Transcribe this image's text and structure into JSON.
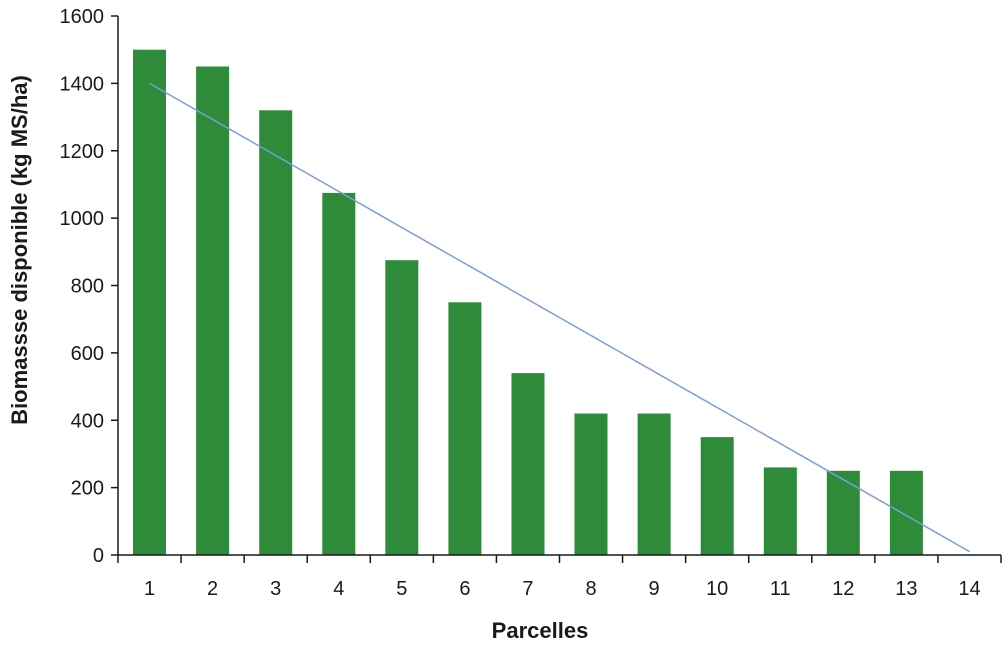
{
  "chart_data": {
    "type": "bar",
    "title": "",
    "xlabel": "Parcelles",
    "ylabel": "Biomassse disponible (kg MS/ha)",
    "categories": [
      "1",
      "2",
      "3",
      "4",
      "5",
      "6",
      "7",
      "8",
      "9",
      "10",
      "11",
      "12",
      "13",
      "14"
    ],
    "values": [
      1500,
      1450,
      1320,
      1075,
      875,
      750,
      540,
      420,
      420,
      350,
      260,
      250,
      250,
      null
    ],
    "ylim": [
      0,
      1600
    ],
    "yticks": [
      0,
      200,
      400,
      600,
      800,
      1000,
      1200,
      1400,
      1600
    ],
    "trendline": {
      "type": "linear",
      "x": [
        1,
        14
      ],
      "y": [
        1400,
        10
      ]
    },
    "grid": false,
    "legend": "none",
    "colors": {
      "bars": "#2e8b3a",
      "trendline": "#7a9ed6",
      "axis": "#1a1a1a"
    }
  }
}
